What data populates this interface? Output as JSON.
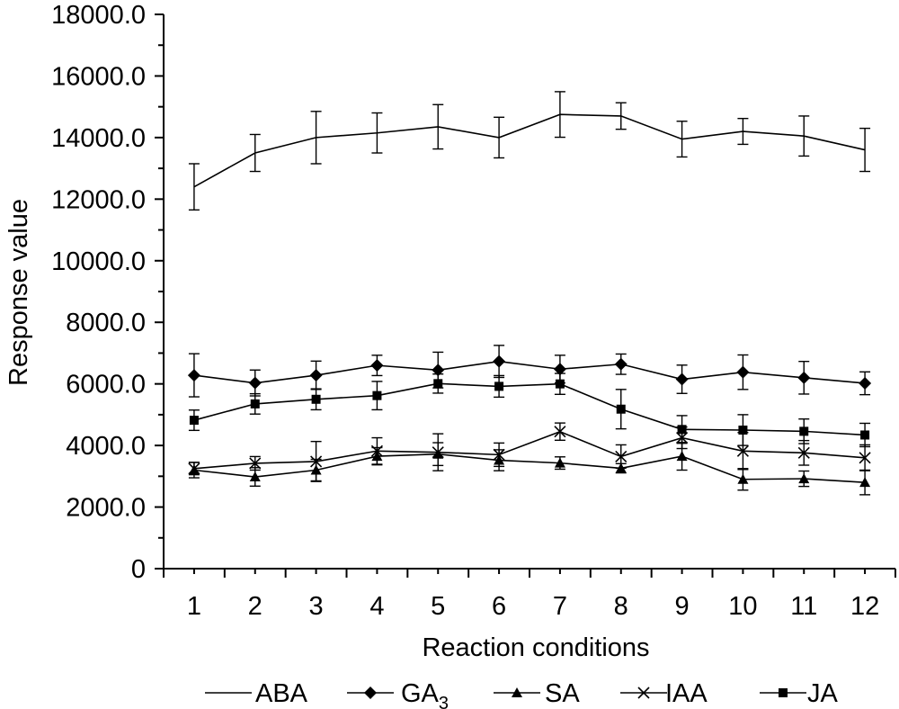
{
  "chart_data": {
    "type": "line",
    "title": "",
    "xlabel": "Reaction conditions",
    "ylabel": "Response value",
    "x": [
      "1",
      "2",
      "3",
      "4",
      "5",
      "6",
      "7",
      "8",
      "9",
      "10",
      "11",
      "12"
    ],
    "ylim": [
      0,
      18000
    ],
    "y_ticks": [
      "0",
      "2000.0",
      "4000.0",
      "6000.0",
      "8000.0",
      "10000.0",
      "12000.0",
      "14000.0",
      "16000.0",
      "18000.0"
    ],
    "y_tick_values": [
      0,
      2000,
      4000,
      6000,
      8000,
      10000,
      12000,
      14000,
      16000,
      18000
    ],
    "grid": false,
    "legend_position": "bottom",
    "series": [
      {
        "name": "ABA",
        "main": "ABA",
        "sub": "",
        "marker": "none",
        "values": [
          12400,
          13500,
          14000,
          14150,
          14350,
          14000,
          14750,
          14700,
          13950,
          14200,
          14050,
          13600
        ],
        "errors": [
          750,
          600,
          850,
          650,
          720,
          660,
          740,
          430,
          580,
          420,
          650,
          700
        ]
      },
      {
        "name": "GA3",
        "main": "GA",
        "sub": "3",
        "marker": "diamond",
        "values": [
          6280,
          6030,
          6280,
          6600,
          6450,
          6730,
          6480,
          6640,
          6150,
          6380,
          6200,
          6020
        ],
        "errors": [
          700,
          420,
          460,
          330,
          580,
          520,
          450,
          330,
          460,
          560,
          530,
          370
        ]
      },
      {
        "name": "SA",
        "main": "SA",
        "sub": "",
        "marker": "triangle",
        "values": [
          3200,
          2980,
          3200,
          3650,
          3720,
          3520,
          3430,
          3260,
          3650,
          2900,
          2920,
          2800
        ],
        "errors": [
          250,
          300,
          350,
          280,
          370,
          340,
          200,
          150,
          450,
          350,
          250,
          400
        ]
      },
      {
        "name": "IAA",
        "main": "IAA",
        "sub": "",
        "marker": "x",
        "values": [
          3250,
          3420,
          3480,
          3820,
          3780,
          3700,
          4450,
          3640,
          4250,
          3820,
          3760,
          3600
        ],
        "errors": [
          200,
          220,
          650,
          430,
          600,
          380,
          280,
          380,
          350,
          600,
          400,
          420
        ]
      },
      {
        "name": "JA",
        "main": "JA",
        "sub": "",
        "marker": "square",
        "values": [
          4820,
          5350,
          5500,
          5620,
          6010,
          5920,
          6000,
          5180,
          4520,
          4500,
          4460,
          4340
        ],
        "errors": [
          330,
          330,
          340,
          460,
          310,
          350,
          340,
          640,
          450,
          500,
          400,
          380
        ]
      }
    ]
  }
}
